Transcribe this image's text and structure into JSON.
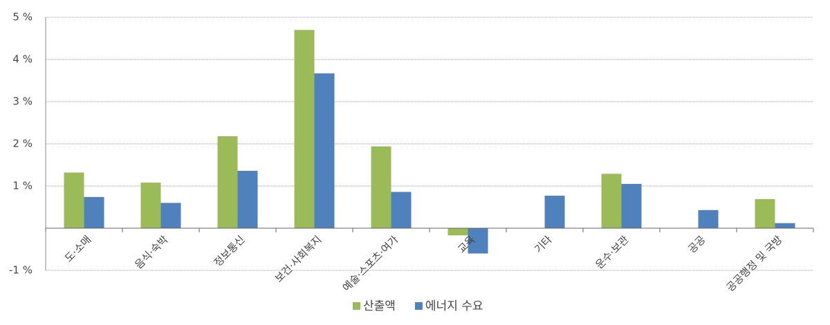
{
  "chart_data": {
    "type": "bar",
    "categories": [
      "도·소매",
      "음식·숙박",
      "정보통신",
      "보건·사회복지",
      "예술·스포츠·여가",
      "교육",
      "기타",
      "운수·보관",
      "공공",
      "공공행정 및 국방"
    ],
    "series": [
      {
        "name": "산출액",
        "color": "#9bbb59",
        "values": [
          1.32,
          1.08,
          2.18,
          4.7,
          1.94,
          -0.17,
          null,
          1.29,
          null,
          0.69
        ]
      },
      {
        "name": "에너지 수요",
        "color": "#4f81bd",
        "values": [
          0.74,
          0.6,
          1.36,
          3.67,
          0.86,
          -0.6,
          0.77,
          1.05,
          0.43,
          0.12
        ]
      }
    ],
    "ylim": [
      -1,
      5
    ],
    "yticks": [
      {
        "value": -1,
        "label": "-1 %"
      },
      {
        "value": 1,
        "label": "1 %"
      },
      {
        "value": 2,
        "label": "2 %"
      },
      {
        "value": 3,
        "label": "3 %"
      },
      {
        "value": 4,
        "label": "4 %"
      },
      {
        "value": 5,
        "label": "5 %"
      }
    ],
    "grid": true,
    "legend": "bottom"
  }
}
